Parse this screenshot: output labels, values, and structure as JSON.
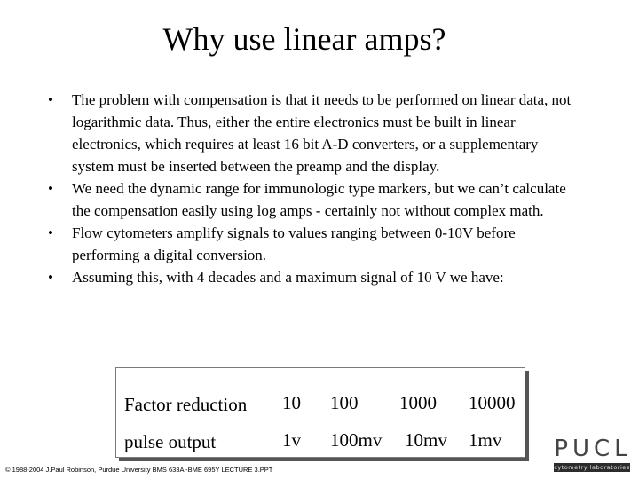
{
  "slide": {
    "title": "Why use linear amps?",
    "bullets": [
      {
        "symbol": "•",
        "text": "The problem with compensation is that it needs to be performed on linear data, not logarithmic data. Thus, either the entire electronics must be built in linear electronics, which requires at least 16 bit A-D converters, or a supplementary system must be inserted between the preamp and the display."
      },
      {
        "symbol": "•",
        "text": "We need the dynamic range for immunologic type markers, but we can’t calculate the compensation easily using log amps - certainly not without complex math."
      },
      {
        "symbol": "•",
        "text": "Flow cytometers amplify signals to values ranging between 0-10V before performing a digital conversion."
      },
      {
        "symbol": "•",
        "text": "Assuming this, with 4 decades and a maximum signal of 10 V we have:"
      }
    ],
    "table": {
      "rows": [
        {
          "label": "Factor reduction",
          "values": [
            "10",
            "100",
            "1000",
            "10000"
          ]
        },
        {
          "label": "pulse output",
          "values": [
            "1v",
            "100mv",
            "10mv",
            "1mv"
          ]
        }
      ]
    },
    "footer": "© 1988-2004 J.Paul Robinson, Purdue University  BMS 633A -BME 695Y  LECTURE 3.PPT",
    "logo": {
      "text": "PUCL",
      "subtitle": "cytometry laboratories"
    }
  }
}
